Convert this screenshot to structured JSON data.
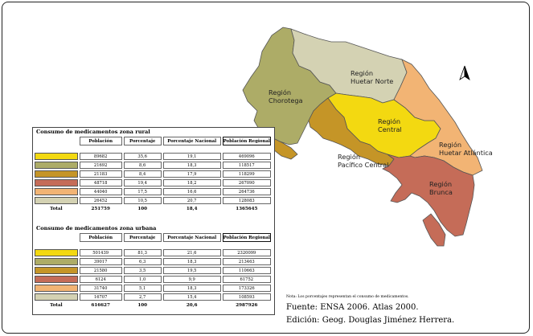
{
  "map": {
    "regions": [
      {
        "id": "chorotega",
        "label": [
          "Región",
          "Chorotega"
        ],
        "color": "#adac67"
      },
      {
        "id": "huetar-norte",
        "label": [
          "Región",
          "Huetar Norte"
        ],
        "color": "#d4d2b3"
      },
      {
        "id": "central",
        "label": [
          "Región",
          "Central"
        ],
        "color": "#f3d911"
      },
      {
        "id": "huetar-atlantica",
        "label": [
          "Región",
          "Huetar Atlántica"
        ],
        "color": "#f2b474"
      },
      {
        "id": "pacifico-central",
        "label": [
          "Región",
          "Pacífico Central"
        ],
        "color": "#c59527"
      },
      {
        "id": "brunca",
        "label": [
          "Región",
          "Brunca"
        ],
        "color": "#c56c58"
      }
    ],
    "north_arrow": "north-arrow-icon"
  },
  "rural": {
    "title": "Consumo de medicamentos zona rural",
    "headers": [
      "Población",
      "Porcentaje",
      "Porcentaje Nacional",
      "Población Regional"
    ],
    "rows": [
      {
        "color": "#f3d911",
        "poblacion": "89682",
        "porcentaje": "35,6",
        "nacional": "19,1",
        "regional": "469096"
      },
      {
        "color": "#adac67",
        "poblacion": "21692",
        "porcentaje": "8,6",
        "nacional": "18,3",
        "regional": "118517"
      },
      {
        "color": "#c59527",
        "poblacion": "21183",
        "porcentaje": "8,4",
        "nacional": "17,9",
        "regional": "118299"
      },
      {
        "color": "#c56c58",
        "poblacion": "48718",
        "porcentaje": "19,4",
        "nacional": "18,2",
        "regional": "267090"
      },
      {
        "color": "#f2b474",
        "poblacion": "44040",
        "porcentaje": "17,5",
        "nacional": "16,6",
        "regional": "264736"
      },
      {
        "color": "#d4d2b3",
        "poblacion": "26452",
        "porcentaje": "10,5",
        "nacional": "20,7",
        "regional": "128083"
      }
    ],
    "total": {
      "label": "Total",
      "poblacion": "251759",
      "porcentaje": "100",
      "nacional": "18,4",
      "regional": "1365645"
    }
  },
  "urban": {
    "title": "Consumo de medicamentos zona urbana",
    "headers": [
      "Población",
      "Porcentaje",
      "Porcentaje Nacional",
      "Población Regional"
    ],
    "rows": [
      {
        "color": "#f3d911",
        "poblacion": "501439",
        "porcentaje": "81,3",
        "nacional": "21,6",
        "regional": "2320099"
      },
      {
        "color": "#adac67",
        "poblacion": "39017",
        "porcentaje": "6,3",
        "nacional": "18,3",
        "regional": "213463"
      },
      {
        "color": "#c59527",
        "poblacion": "21580",
        "porcentaje": "3,5",
        "nacional": "19,5",
        "regional": "110663"
      },
      {
        "color": "#c56c58",
        "poblacion": "6124",
        "porcentaje": "1,0",
        "nacional": "9,9",
        "regional": "61752"
      },
      {
        "color": "#f2b474",
        "poblacion": "31740",
        "porcentaje": "5,1",
        "nacional": "18,3",
        "regional": "173326"
      },
      {
        "color": "#d4d2b3",
        "poblacion": "16707",
        "porcentaje": "2,7",
        "nacional": "15,4",
        "regional": "108593"
      }
    ],
    "total": {
      "label": "Total",
      "poblacion": "616627",
      "porcentaje": "100",
      "nacional": "20,6",
      "regional": "2987926"
    }
  },
  "note": "Nota: Los porcentajes representan el consumo de medicamentos.",
  "source": "Fuente: ENSA 2006. Atlas 2000.",
  "edition": "Edición: Geog. Douglas Jiménez Herrera."
}
